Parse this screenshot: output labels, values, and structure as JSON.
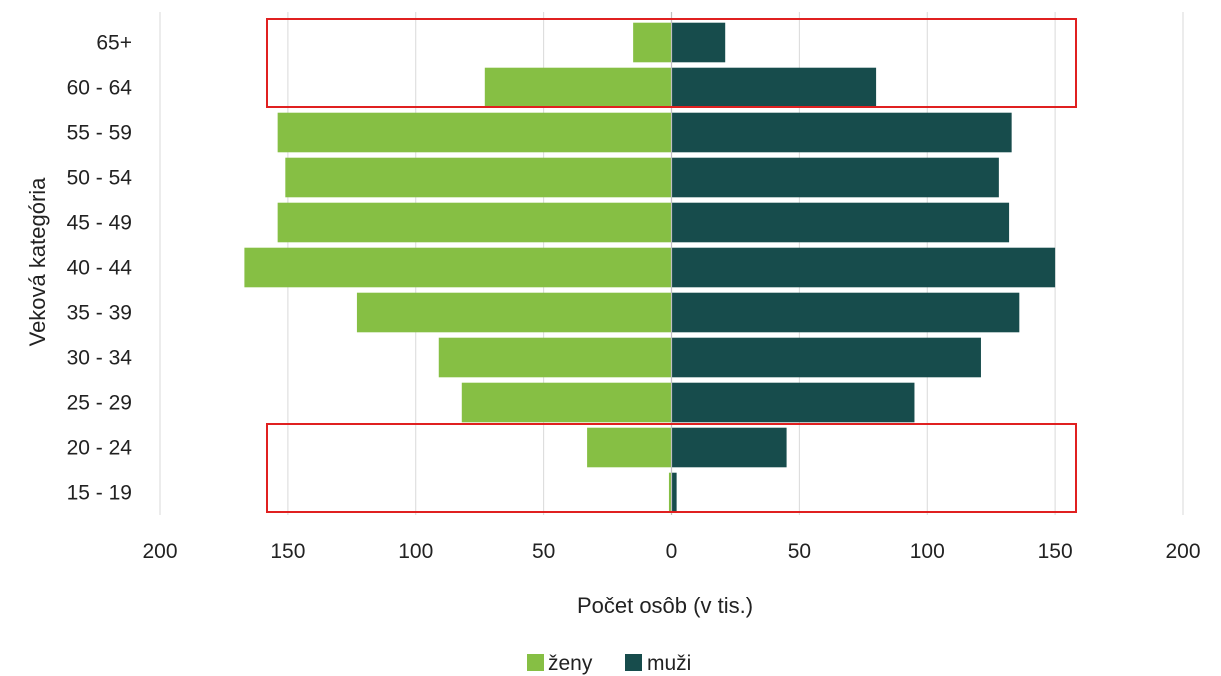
{
  "chart_data": {
    "type": "bar",
    "orientation": "horizontal",
    "subtype": "population-pyramid",
    "categories": [
      "15 - 19",
      "20 - 24",
      "25 - 29",
      "30 - 34",
      "35 - 39",
      "40 - 44",
      "45 - 49",
      "50 - 54",
      "55 - 59",
      "60 - 64",
      "65+"
    ],
    "series": [
      {
        "name": "ženy",
        "color": "#86bf44",
        "direction": "left",
        "values": [
          1,
          33,
          82,
          91,
          123,
          167,
          154,
          151,
          154,
          73,
          15
        ]
      },
      {
        "name": "muži",
        "color": "#174c4c",
        "direction": "right",
        "values": [
          2,
          45,
          95,
          121,
          136,
          150,
          132,
          128,
          133,
          80,
          21
        ]
      }
    ],
    "xlabel": "Počet osôb (v tis.)",
    "ylabel": "Veková kategória",
    "xlim": [
      -200,
      200
    ],
    "x_ticks": [
      {
        "value": -200,
        "label": "200"
      },
      {
        "value": -150,
        "label": "150"
      },
      {
        "value": -100,
        "label": "100"
      },
      {
        "value": -50,
        "label": "50"
      },
      {
        "value": 0,
        "label": "0"
      },
      {
        "value": 50,
        "label": "50"
      },
      {
        "value": 100,
        "label": "100"
      },
      {
        "value": 150,
        "label": "150"
      },
      {
        "value": 200,
        "label": "200"
      }
    ],
    "grid": true,
    "legend_position": "bottom",
    "highlights": [
      {
        "categories": [
          "60 - 64",
          "65+"
        ],
        "color": "#e02020"
      },
      {
        "categories": [
          "15 - 19",
          "20 - 24"
        ],
        "color": "#e02020"
      }
    ]
  }
}
